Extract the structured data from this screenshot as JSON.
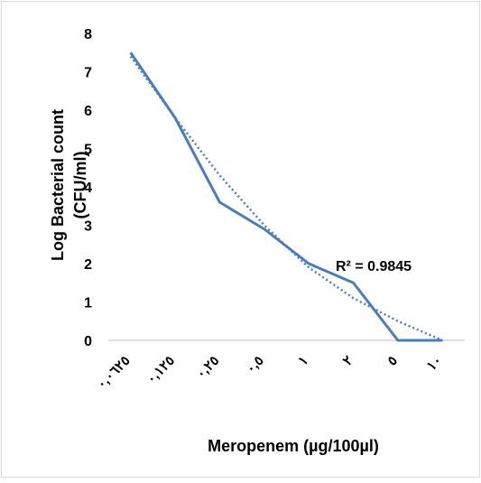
{
  "chart_data": {
    "type": "line",
    "categories": [
      "٠,٠٦٢٥",
      "٠,١٢٥",
      "٠,٢٥",
      "٠,٥",
      "١",
      "٢",
      "٥",
      "١٠"
    ],
    "series": [
      {
        "color": "#4a7ebb",
        "values": [
          7.5,
          5.8,
          3.6,
          2.9,
          2.0,
          1.5,
          0,
          0
        ]
      }
    ],
    "trendline": {
      "color": "#4a7ebb",
      "values": [
        7.4,
        5.8,
        4.3,
        3.0,
        1.9,
        1.1,
        0.5,
        0.0
      ]
    },
    "annotation": "R² = 0.9845",
    "ylabel": [
      "Log Bacterial count",
      "(CFU/ml)"
    ],
    "xlabel": "Meropenem (µg/100µl)",
    "ylim": [
      0,
      8
    ],
    "yticks": [
      0,
      1,
      2,
      3,
      4,
      5,
      6,
      7,
      8
    ],
    "grid": false
  }
}
